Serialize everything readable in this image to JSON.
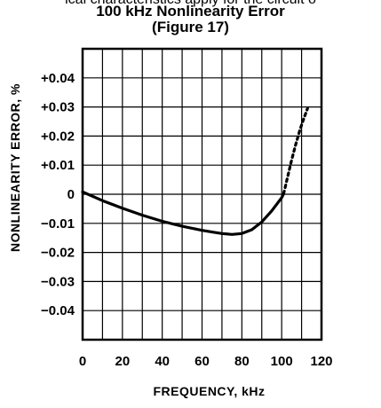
{
  "page": {
    "cut_text": "ical characteristics apply for the circuit o"
  },
  "chart_data": {
    "type": "line",
    "title": "100 kHz Nonlinearity Error",
    "subtitle": "(Figure 17)",
    "xlabel": "FREQUENCY, kHz",
    "ylabel": "NONLINEARITY ERROR, %",
    "xlim": [
      0,
      120
    ],
    "ylim": [
      -0.05,
      0.05
    ],
    "x_ticks": [
      0,
      20,
      40,
      60,
      80,
      100,
      120
    ],
    "x_tick_labels": [
      "0",
      "20",
      "40",
      "60",
      "80",
      "100",
      "120"
    ],
    "y_ticks": [
      0.04,
      0.03,
      0.02,
      0.01,
      0,
      -0.01,
      -0.02,
      -0.03,
      -0.04
    ],
    "y_tick_labels": [
      "+0.04",
      "+0.03",
      "+0.02",
      "+0.01",
      "0",
      "−0.01",
      "−0.02",
      "−0.03",
      "−0.04"
    ],
    "x_minor_gridlines": [
      10,
      30,
      50,
      70,
      90,
      110
    ],
    "grid": true,
    "series": [
      {
        "style": "solid",
        "x": [
          0,
          10,
          20,
          30,
          40,
          50,
          60,
          65,
          70,
          75,
          80,
          85,
          90,
          95,
          100,
          101
        ],
        "y": [
          0.0008,
          -0.0022,
          -0.0048,
          -0.0072,
          -0.0093,
          -0.011,
          -0.0124,
          -0.013,
          -0.0135,
          -0.0138,
          -0.0135,
          -0.0122,
          -0.0095,
          -0.0057,
          -0.0012,
          0.0002
        ]
      },
      {
        "style": "dotted",
        "x": [
          101,
          103,
          105,
          107,
          109,
          111,
          113
        ],
        "y": [
          0.0002,
          0.006,
          0.0118,
          0.017,
          0.0217,
          0.0258,
          0.0295
        ]
      }
    ]
  }
}
